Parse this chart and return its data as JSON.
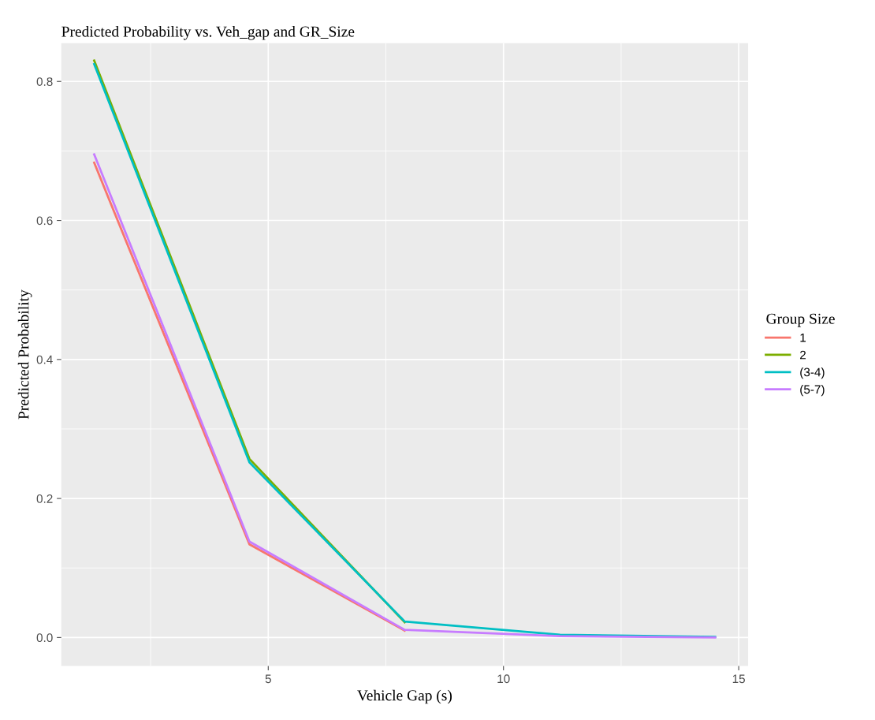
{
  "chart_data": {
    "type": "line",
    "title": "Predicted Probability vs. Veh_gap and GR_Size",
    "xlabel": "Vehicle Gap (s)",
    "ylabel": "Predicted Probability",
    "legend_title": "Group Size",
    "x": [
      1.3,
      4.6,
      7.9,
      11.2,
      14.5
    ],
    "series": [
      {
        "name": "1",
        "color": "#f8766d",
        "values": [
          0.683,
          0.134,
          0.01,
          null,
          null
        ]
      },
      {
        "name": "2",
        "color": "#7cae00",
        "values": [
          0.83,
          0.257,
          0.022,
          null,
          null
        ]
      },
      {
        "name": "(3-4)",
        "color": "#00bfc4",
        "values": [
          0.825,
          0.252,
          0.023,
          0.004,
          0.001
        ]
      },
      {
        "name": "(5-7)",
        "color": "#c77cff",
        "values": [
          0.695,
          0.138,
          0.011,
          0.002,
          0.0
        ]
      }
    ],
    "xlim": [
      0.6,
      15.2
    ],
    "ylim": [
      -0.041,
      0.855
    ],
    "xticks": [
      5,
      10,
      15
    ],
    "yticks": [
      {
        "value": 0,
        "label": "0.0"
      },
      {
        "value": 0.2,
        "label": "0.2"
      },
      {
        "value": 0.4,
        "label": "0.4"
      },
      {
        "value": 0.6,
        "label": "0.6"
      },
      {
        "value": 0.8,
        "label": "0.8"
      }
    ],
    "grid": true,
    "legend": "right",
    "marker": "none",
    "line_style": "solid"
  }
}
